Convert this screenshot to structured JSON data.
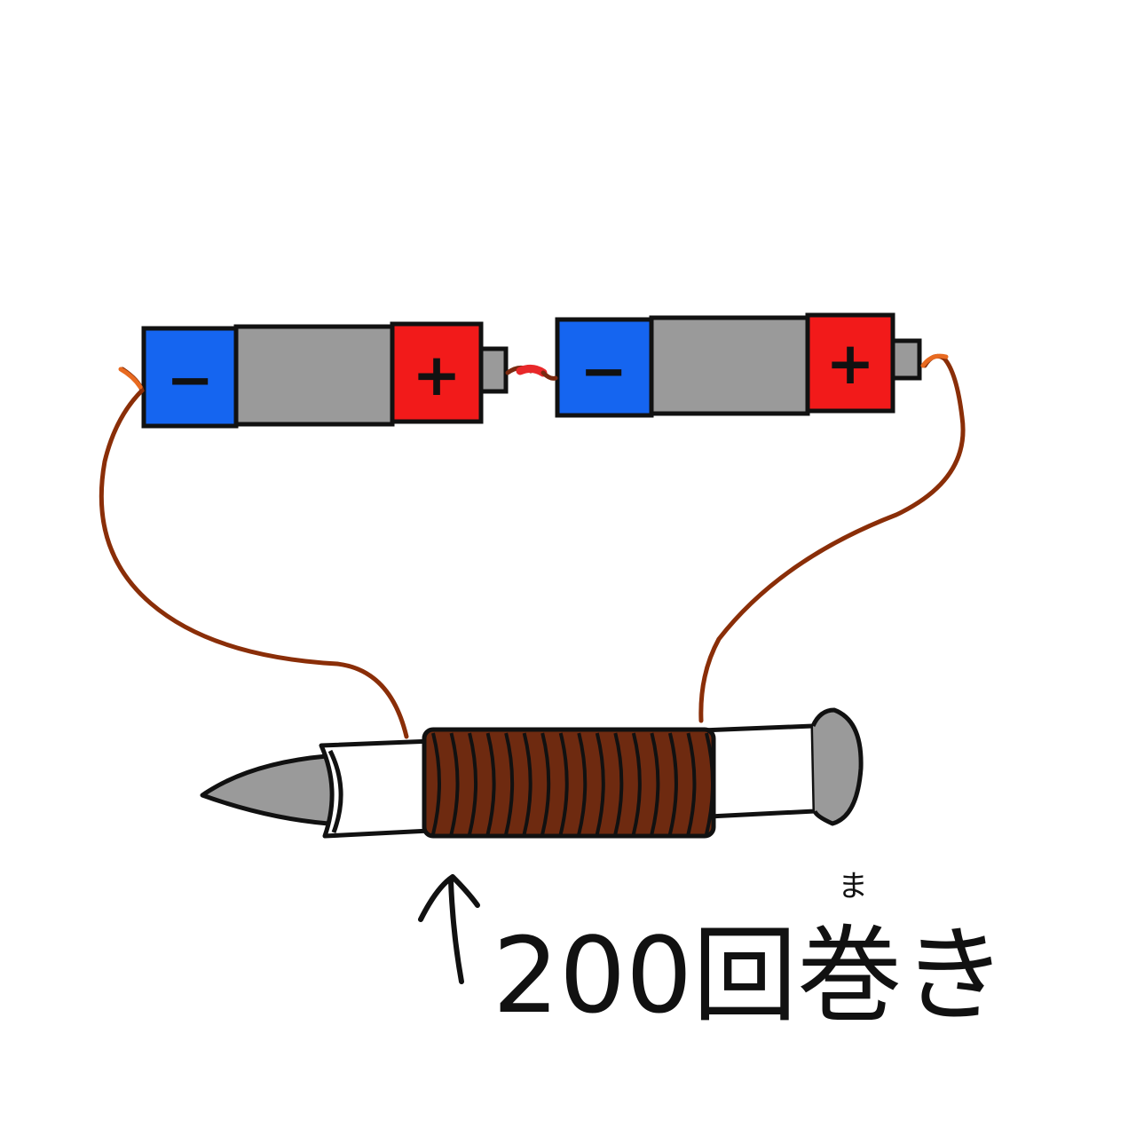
{
  "battery_left": {
    "minus_label": "−",
    "plus_label": "+"
  },
  "battery_right": {
    "minus_label": "−",
    "plus_label": "+"
  },
  "coil_label": {
    "text": "200回巻き",
    "furigana": "ま"
  },
  "colors": {
    "minus": "#1565f0",
    "body": "#9a9a9a",
    "plus": "#f21a1a",
    "wire": "#8a2e08",
    "coil": "#6e2a10",
    "outline": "#111111",
    "link": "#e8282a"
  },
  "icons": [
    "battery-icon",
    "up-arrow-icon",
    "iron-nail-icon",
    "coil-icon"
  ]
}
